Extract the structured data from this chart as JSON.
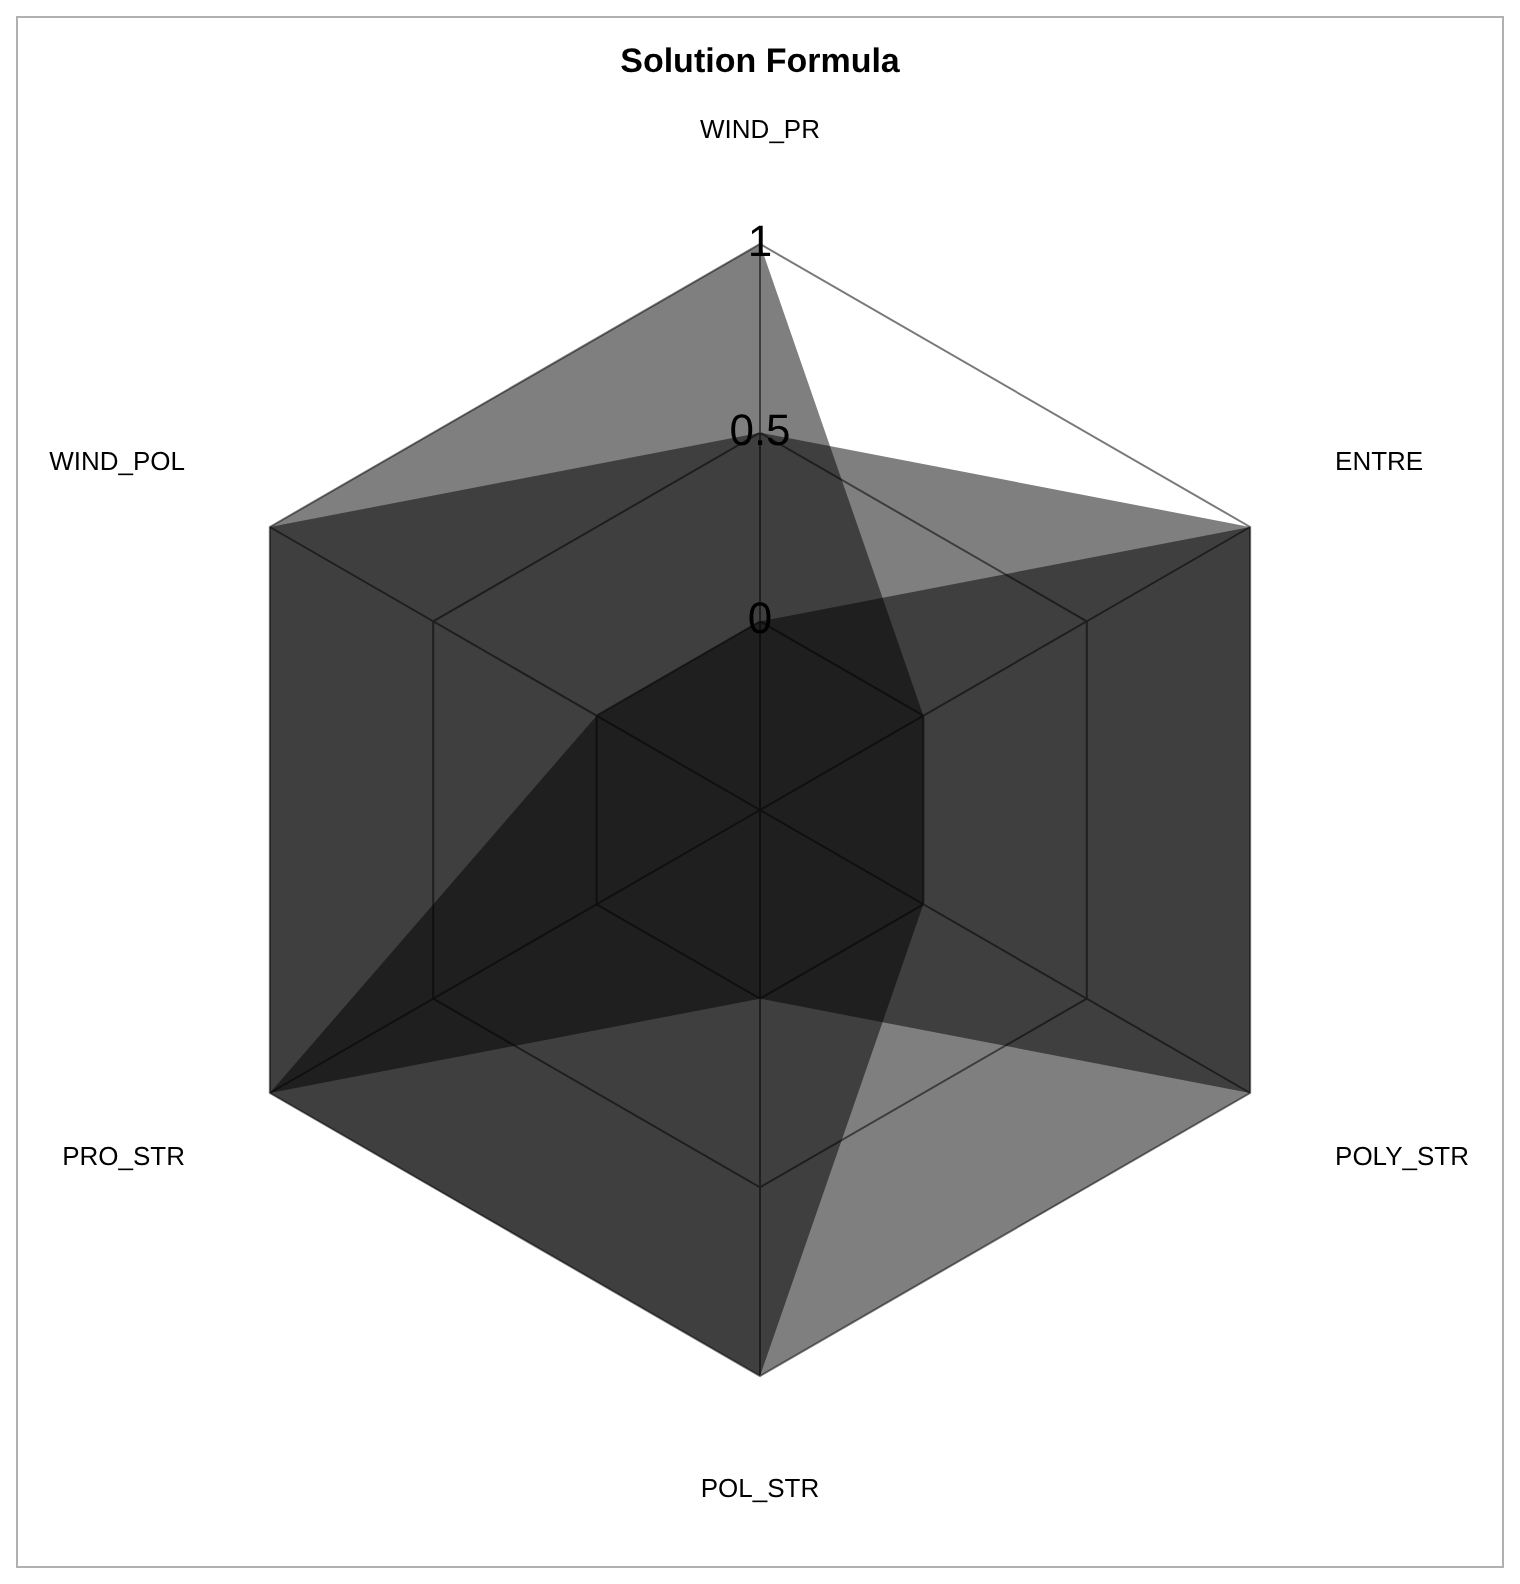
{
  "chart_data": {
    "type": "radar",
    "title": "Solution Formula",
    "categories": [
      "WIND_PR",
      "ENTRE",
      "POLY_STR",
      "POL_STR",
      "PRO_STR",
      "WIND_POL"
    ],
    "series": [
      {
        "color": "#000000",
        "values": [
          1,
          0,
          0,
          1,
          1,
          1
        ]
      },
      {
        "color": "#000000",
        "values": [
          0.5,
          1,
          1,
          0,
          1,
          1
        ]
      },
      {
        "color": "#000000",
        "values": [
          0,
          1,
          1,
          1,
          1,
          0
        ]
      }
    ],
    "ylim": [
      -0.5,
      1
    ],
    "yticks": [
      0,
      0.5,
      1
    ],
    "grid": true,
    "marker": "none"
  }
}
